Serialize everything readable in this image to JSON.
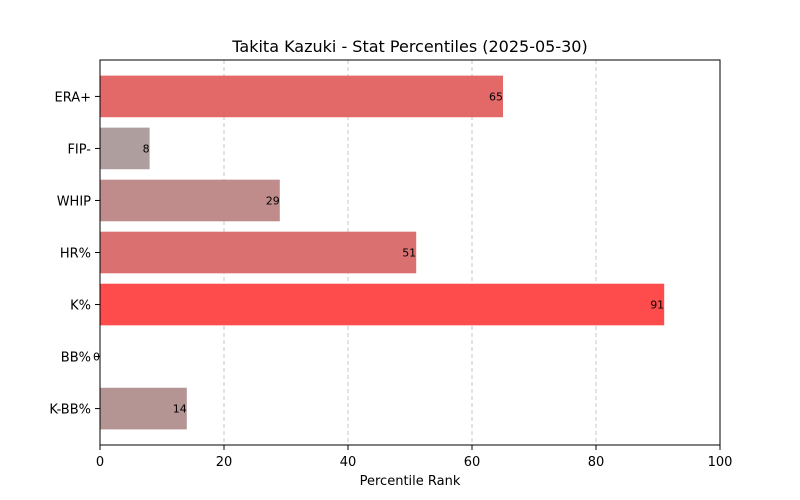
{
  "chart_data": {
    "type": "bar",
    "orientation": "horizontal",
    "title": "Takita Kazuki - Stat Percentiles (2025-05-30)",
    "xlabel": "Percentile Rank",
    "ylabel": "",
    "xlim": [
      0,
      100
    ],
    "xticks": [
      "0",
      "20",
      "40",
      "60",
      "80",
      "100"
    ],
    "grid": "x-dashed",
    "categories": [
      "ERA+",
      "FIP-",
      "WHIP",
      "HR%",
      "K%",
      "BB%",
      "K-BB%"
    ],
    "values": [
      65,
      8,
      29,
      51,
      91,
      0,
      14
    ],
    "colors": [
      "#e36868",
      "#ae9e9e",
      "#c08b8b",
      "#da7070",
      "#fe4c4c",
      "#a8a8a8",
      "#b59494"
    ]
  }
}
